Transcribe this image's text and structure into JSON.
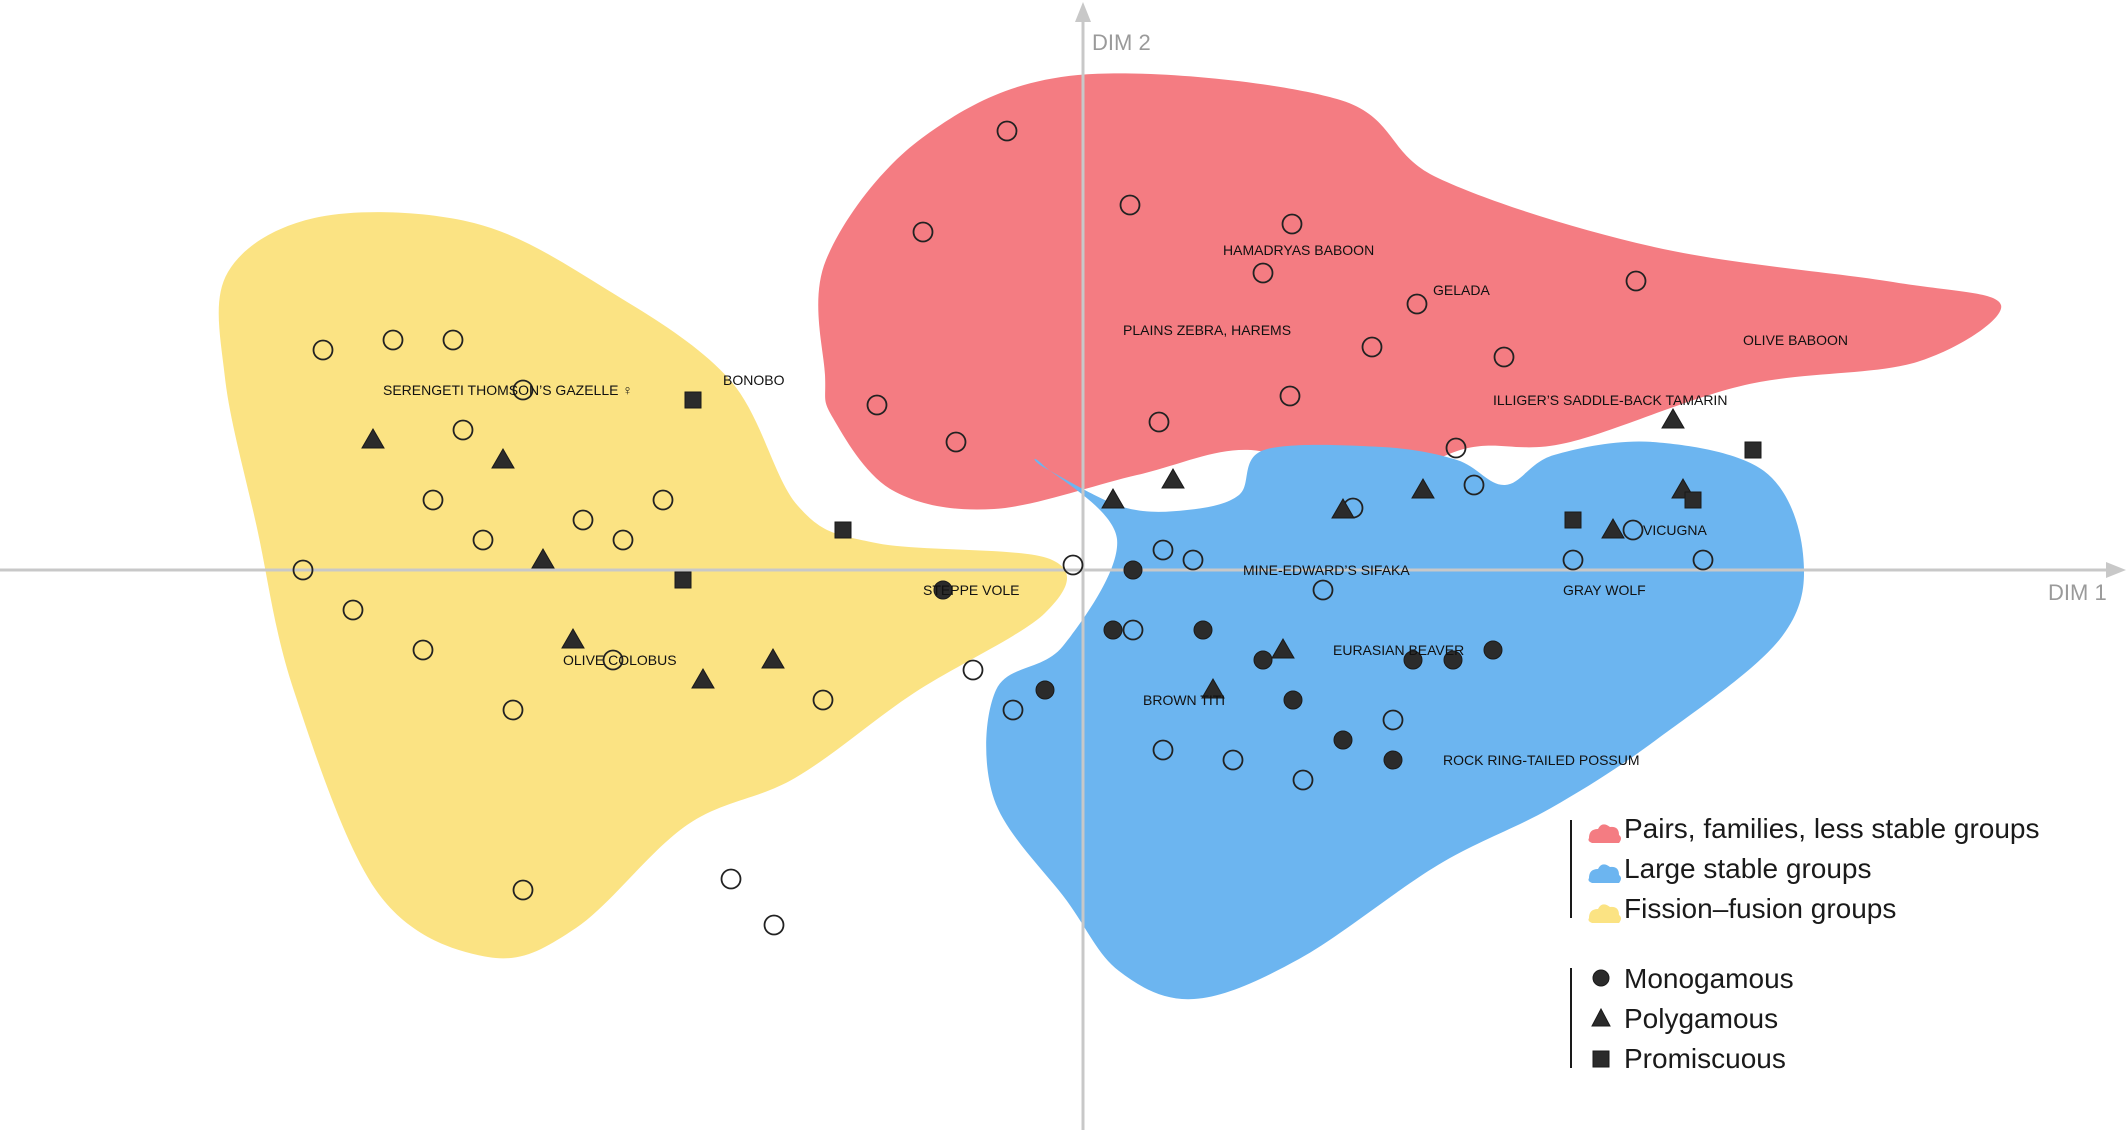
{
  "chart_data": {
    "type": "scatter",
    "xlabel": "DIM 1",
    "ylabel": "DIM 2",
    "xlim": [
      -10.8,
      10.6
    ],
    "ylim": [
      -5.8,
      5.7
    ],
    "grid": false,
    "legend_placement": "bottom-right",
    "colors": {
      "pairs": "#f47c82",
      "large": "#6cb5f0",
      "fission": "#fbe383",
      "marker": "#2b2b2b",
      "axis": "#c8c8c8"
    },
    "legend": {
      "groups": [
        {
          "key": "pairs",
          "label": "Pairs, families, less stable groups"
        },
        {
          "key": "large",
          "label": "Large stable groups"
        },
        {
          "key": "fission",
          "label": "Fission–fusion groups"
        }
      ],
      "mating": [
        {
          "marker": "circle",
          "label": "Monogamous"
        },
        {
          "marker": "triangle",
          "label": "Polygamous"
        },
        {
          "marker": "square",
          "label": "Promiscuous"
        }
      ]
    },
    "regions": [
      {
        "group": "pairs",
        "outline": [
          [
            -2.57,
            3.1
          ],
          [
            -1.61,
            4.32
          ],
          [
            -0.05,
            4.95
          ],
          [
            2.54,
            4.71
          ],
          [
            3.55,
            3.92
          ],
          [
            5.71,
            3.23
          ],
          [
            8.1,
            2.88
          ],
          [
            9.18,
            2.65
          ],
          [
            8.34,
            2.08
          ],
          [
            6.62,
            1.85
          ],
          [
            4.83,
            1.27
          ],
          [
            3.85,
            1.22
          ],
          [
            2.78,
            0.83
          ],
          [
            1.68,
            1.2
          ],
          [
            0.54,
            0.95
          ],
          [
            -0.89,
            0.61
          ],
          [
            -1.91,
            0.8
          ],
          [
            -2.5,
            1.52
          ],
          [
            -2.58,
            1.95
          ],
          [
            -2.57,
            3.1
          ]
        ]
      },
      {
        "group": "large",
        "outline": [
          [
            -0.4,
            1.05
          ],
          [
            0.34,
            0.31
          ],
          [
            -0.2,
            -0.76
          ],
          [
            -0.87,
            -1.2
          ],
          [
            -0.89,
            -2.29
          ],
          [
            -0.16,
            -3.31
          ],
          [
            0.36,
            -4.01
          ],
          [
            1.11,
            -4.29
          ],
          [
            2.16,
            -3.89
          ],
          [
            3.55,
            -2.95
          ],
          [
            4.68,
            -2.38
          ],
          [
            5.73,
            -1.7
          ],
          [
            6.97,
            -0.69
          ],
          [
            7.2,
            0.16
          ],
          [
            6.81,
            0.99
          ],
          [
            5.7,
            1.28
          ],
          [
            4.71,
            1.15
          ],
          [
            4.22,
            0.85
          ],
          [
            3.74,
            1.1
          ],
          [
            2.99,
            1.23
          ],
          [
            1.81,
            1.2
          ],
          [
            1.56,
            0.75
          ],
          [
            1.04,
            0.6
          ],
          [
            0.4,
            0.63
          ],
          [
            -0.38,
            1.02
          ],
          [
            -0.4,
            1.05
          ]
        ]
      },
      {
        "group": "fission",
        "outline": [
          [
            -8.55,
            2.98
          ],
          [
            -7.64,
            3.53
          ],
          [
            -6.09,
            3.47
          ],
          [
            -4.77,
            2.81
          ],
          [
            -3.53,
            1.9
          ],
          [
            -2.85,
            0.64
          ],
          [
            -2.07,
            0.27
          ],
          [
            -0.33,
            0.11
          ],
          [
            -0.38,
            -0.43
          ],
          [
            -1.69,
            -1.23
          ],
          [
            -2.88,
            -2.08
          ],
          [
            -3.96,
            -2.55
          ],
          [
            -5.07,
            -3.58
          ],
          [
            -5.95,
            -3.87
          ],
          [
            -7.05,
            -3.23
          ],
          [
            -7.89,
            -1.21
          ],
          [
            -8.26,
            0.42
          ],
          [
            -8.58,
            1.92
          ],
          [
            -8.55,
            2.98
          ]
        ]
      }
    ],
    "points": [
      {
        "x": -3.09,
        "y": -3.55,
        "marker": "circle",
        "filled": false
      },
      {
        "x": -3.52,
        "y": -3.09,
        "marker": "circle",
        "filled": false
      },
      {
        "x": -0.76,
        "y": 4.39,
        "marker": "circle",
        "filled": false
      },
      {
        "x": -1.6,
        "y": 3.38,
        "marker": "circle",
        "filled": false
      },
      {
        "x": 0.47,
        "y": 3.65,
        "marker": "circle",
        "filled": false
      },
      {
        "x": 2.09,
        "y": 3.46,
        "marker": "circle",
        "filled": false
      },
      {
        "x": 1.8,
        "y": 2.97,
        "marker": "circle",
        "filled": false
      },
      {
        "x": 3.34,
        "y": 2.66,
        "marker": "circle",
        "filled": false
      },
      {
        "x": 5.53,
        "y": 2.89,
        "marker": "circle",
        "filled": false
      },
      {
        "x": 4.21,
        "y": 2.13,
        "marker": "circle",
        "filled": false
      },
      {
        "x": 2.89,
        "y": 2.23,
        "marker": "circle",
        "filled": false
      },
      {
        "x": 2.07,
        "y": 1.74,
        "marker": "circle",
        "filled": false
      },
      {
        "x": -2.06,
        "y": 1.65,
        "marker": "circle",
        "filled": false
      },
      {
        "x": -1.27,
        "y": 1.28,
        "marker": "circle",
        "filled": false
      },
      {
        "x": 0.76,
        "y": 1.48,
        "marker": "circle",
        "filled": false
      },
      {
        "x": 3.73,
        "y": 1.22,
        "marker": "circle",
        "filled": false
      },
      {
        "x": 3.91,
        "y": 0.85,
        "marker": "circle",
        "filled": false
      },
      {
        "x": 2.7,
        "y": 0.62,
        "marker": "circle",
        "filled": false
      },
      {
        "x": -0.1,
        "y": 0.05,
        "marker": "circle",
        "filled": false
      },
      {
        "x": 0.8,
        "y": 0.2,
        "marker": "circle",
        "filled": false
      },
      {
        "x": 1.1,
        "y": 0.1,
        "marker": "circle",
        "filled": false
      },
      {
        "x": 2.4,
        "y": -0.2,
        "marker": "circle",
        "filled": false
      },
      {
        "x": 4.9,
        "y": 0.1,
        "marker": "circle",
        "filled": false
      },
      {
        "x": 5.5,
        "y": 0.4,
        "marker": "circle",
        "filled": false
      },
      {
        "x": 6.2,
        "y": 0.1,
        "marker": "circle",
        "filled": false
      },
      {
        "x": 0.5,
        "y": -0.6,
        "marker": "circle",
        "filled": false
      },
      {
        "x": -0.7,
        "y": -1.4,
        "marker": "circle",
        "filled": false
      },
      {
        "x": 0.8,
        "y": -1.8,
        "marker": "circle",
        "filled": false
      },
      {
        "x": 1.5,
        "y": -1.9,
        "marker": "circle",
        "filled": false
      },
      {
        "x": 2.2,
        "y": -2.1,
        "marker": "circle",
        "filled": false
      },
      {
        "x": 3.1,
        "y": -1.5,
        "marker": "circle",
        "filled": false
      },
      {
        "x": -0.38,
        "y": -1.2,
        "marker": "circle",
        "filled": true
      },
      {
        "x": 0.3,
        "y": -0.6,
        "marker": "circle",
        "filled": true
      },
      {
        "x": 1.2,
        "y": -0.6,
        "marker": "circle",
        "filled": true
      },
      {
        "x": 1.8,
        "y": -0.9,
        "marker": "circle",
        "filled": true
      },
      {
        "x": 2.1,
        "y": -1.3,
        "marker": "circle",
        "filled": true
      },
      {
        "x": 3.3,
        "y": -0.9,
        "marker": "circle",
        "filled": true
      },
      {
        "x": 3.7,
        "y": -0.9,
        "marker": "circle",
        "filled": true
      },
      {
        "x": 4.1,
        "y": -0.8,
        "marker": "circle",
        "filled": true
      },
      {
        "x": 2.6,
        "y": -1.7,
        "marker": "circle",
        "filled": true
      },
      {
        "x": 3.1,
        "y": -1.9,
        "marker": "circle",
        "filled": true
      },
      {
        "x": 0.5,
        "y": 0.0,
        "marker": "circle",
        "filled": true
      },
      {
        "x": -1.4,
        "y": -0.2,
        "marker": "circle",
        "filled": true
      },
      {
        "x": 0.3,
        "y": 0.7,
        "marker": "triangle",
        "filled": true
      },
      {
        "x": 0.9,
        "y": 0.9,
        "marker": "triangle",
        "filled": true
      },
      {
        "x": 2.6,
        "y": 0.6,
        "marker": "triangle",
        "filled": true
      },
      {
        "x": 3.4,
        "y": 0.8,
        "marker": "triangle",
        "filled": true
      },
      {
        "x": 5.3,
        "y": 0.4,
        "marker": "triangle",
        "filled": true
      },
      {
        "x": 6.0,
        "y": 0.8,
        "marker": "triangle",
        "filled": true
      },
      {
        "x": 5.9,
        "y": 1.5,
        "marker": "triangle",
        "filled": true
      },
      {
        "x": 2.0,
        "y": -0.8,
        "marker": "triangle",
        "filled": true
      },
      {
        "x": 1.3,
        "y": -1.2,
        "marker": "triangle",
        "filled": true
      },
      {
        "x": -3.8,
        "y": -1.1,
        "marker": "triangle",
        "filled": true
      },
      {
        "x": -3.1,
        "y": -0.9,
        "marker": "triangle",
        "filled": true
      },
      {
        "x": -5.1,
        "y": -0.7,
        "marker": "triangle",
        "filled": true
      },
      {
        "x": -7.1,
        "y": 1.3,
        "marker": "triangle",
        "filled": true
      },
      {
        "x": -5.8,
        "y": 1.1,
        "marker": "triangle",
        "filled": true
      },
      {
        "x": -5.4,
        "y": 0.1,
        "marker": "triangle",
        "filled": true
      },
      {
        "x": -3.9,
        "y": 1.7,
        "marker": "square",
        "filled": true
      },
      {
        "x": -4.0,
        "y": -0.1,
        "marker": "square",
        "filled": true
      },
      {
        "x": -2.4,
        "y": 0.4,
        "marker": "square",
        "filled": true
      },
      {
        "x": 4.9,
        "y": 0.5,
        "marker": "square",
        "filled": true
      },
      {
        "x": 6.1,
        "y": 0.7,
        "marker": "square",
        "filled": true
      },
      {
        "x": 6.7,
        "y": 1.2,
        "marker": "square",
        "filled": true
      },
      {
        "x": -7.6,
        "y": 2.2,
        "marker": "circle",
        "filled": false
      },
      {
        "x": -6.9,
        "y": 2.3,
        "marker": "circle",
        "filled": false
      },
      {
        "x": -6.3,
        "y": 2.3,
        "marker": "circle",
        "filled": false
      },
      {
        "x": -5.6,
        "y": 1.8,
        "marker": "circle",
        "filled": false
      },
      {
        "x": -6.2,
        "y": 1.4,
        "marker": "circle",
        "filled": false
      },
      {
        "x": -6.5,
        "y": 0.7,
        "marker": "circle",
        "filled": false
      },
      {
        "x": -6.0,
        "y": 0.3,
        "marker": "circle",
        "filled": false
      },
      {
        "x": -5.0,
        "y": 0.5,
        "marker": "circle",
        "filled": false
      },
      {
        "x": -4.6,
        "y": 0.3,
        "marker": "circle",
        "filled": false
      },
      {
        "x": -4.2,
        "y": 0.7,
        "marker": "circle",
        "filled": false
      },
      {
        "x": -7.8,
        "y": 0.0,
        "marker": "circle",
        "filled": false
      },
      {
        "x": -7.3,
        "y": -0.4,
        "marker": "circle",
        "filled": false
      },
      {
        "x": -6.6,
        "y": -0.8,
        "marker": "circle",
        "filled": false
      },
      {
        "x": -5.7,
        "y": -1.4,
        "marker": "circle",
        "filled": false
      },
      {
        "x": -4.7,
        "y": -0.9,
        "marker": "circle",
        "filled": false
      },
      {
        "x": -2.6,
        "y": -1.3,
        "marker": "circle",
        "filled": false
      },
      {
        "x": -1.1,
        "y": -1.0,
        "marker": "circle",
        "filled": false
      },
      {
        "x": -5.6,
        "y": -3.2,
        "marker": "circle",
        "filled": false
      }
    ],
    "labels": [
      {
        "text": "HAMADRYAS BABOON",
        "x": 1.4,
        "y": 3.2
      },
      {
        "text": "GELADA",
        "x": 3.5,
        "y": 2.8
      },
      {
        "text": "PLAINS ZEBRA, HAREMS",
        "x": 0.4,
        "y": 2.4
      },
      {
        "text": "OLIVE BABOON",
        "x": 6.6,
        "y": 2.3
      },
      {
        "text": "ILLIGER’S SADDLE-BACK TAMARIN",
        "x": 4.1,
        "y": 1.7
      },
      {
        "text": "SERENGETI THOMSON’S GAZELLE ♀",
        "x": -7.0,
        "y": 1.8
      },
      {
        "text": "BONOBO",
        "x": -3.6,
        "y": 1.9
      },
      {
        "text": "STEPPE VOLE",
        "x": -1.6,
        "y": -0.2
      },
      {
        "text": "OLIVE COLOBUS",
        "x": -5.2,
        "y": -0.9
      },
      {
        "text": "VICUGNA",
        "x": 5.6,
        "y": 0.4
      },
      {
        "text": "MINE-EDWARD’S SIFAKA",
        "x": 1.6,
        "y": 0.0
      },
      {
        "text": "GRAY WOLF",
        "x": 4.8,
        "y": -0.2
      },
      {
        "text": "EURASIAN BEAVER",
        "x": 2.5,
        "y": -0.8
      },
      {
        "text": "BROWN TITI",
        "x": 0.6,
        "y": -1.3
      },
      {
        "text": "ROCK RING-TAILED POSSUM",
        "x": 3.6,
        "y": -1.9
      }
    ]
  }
}
